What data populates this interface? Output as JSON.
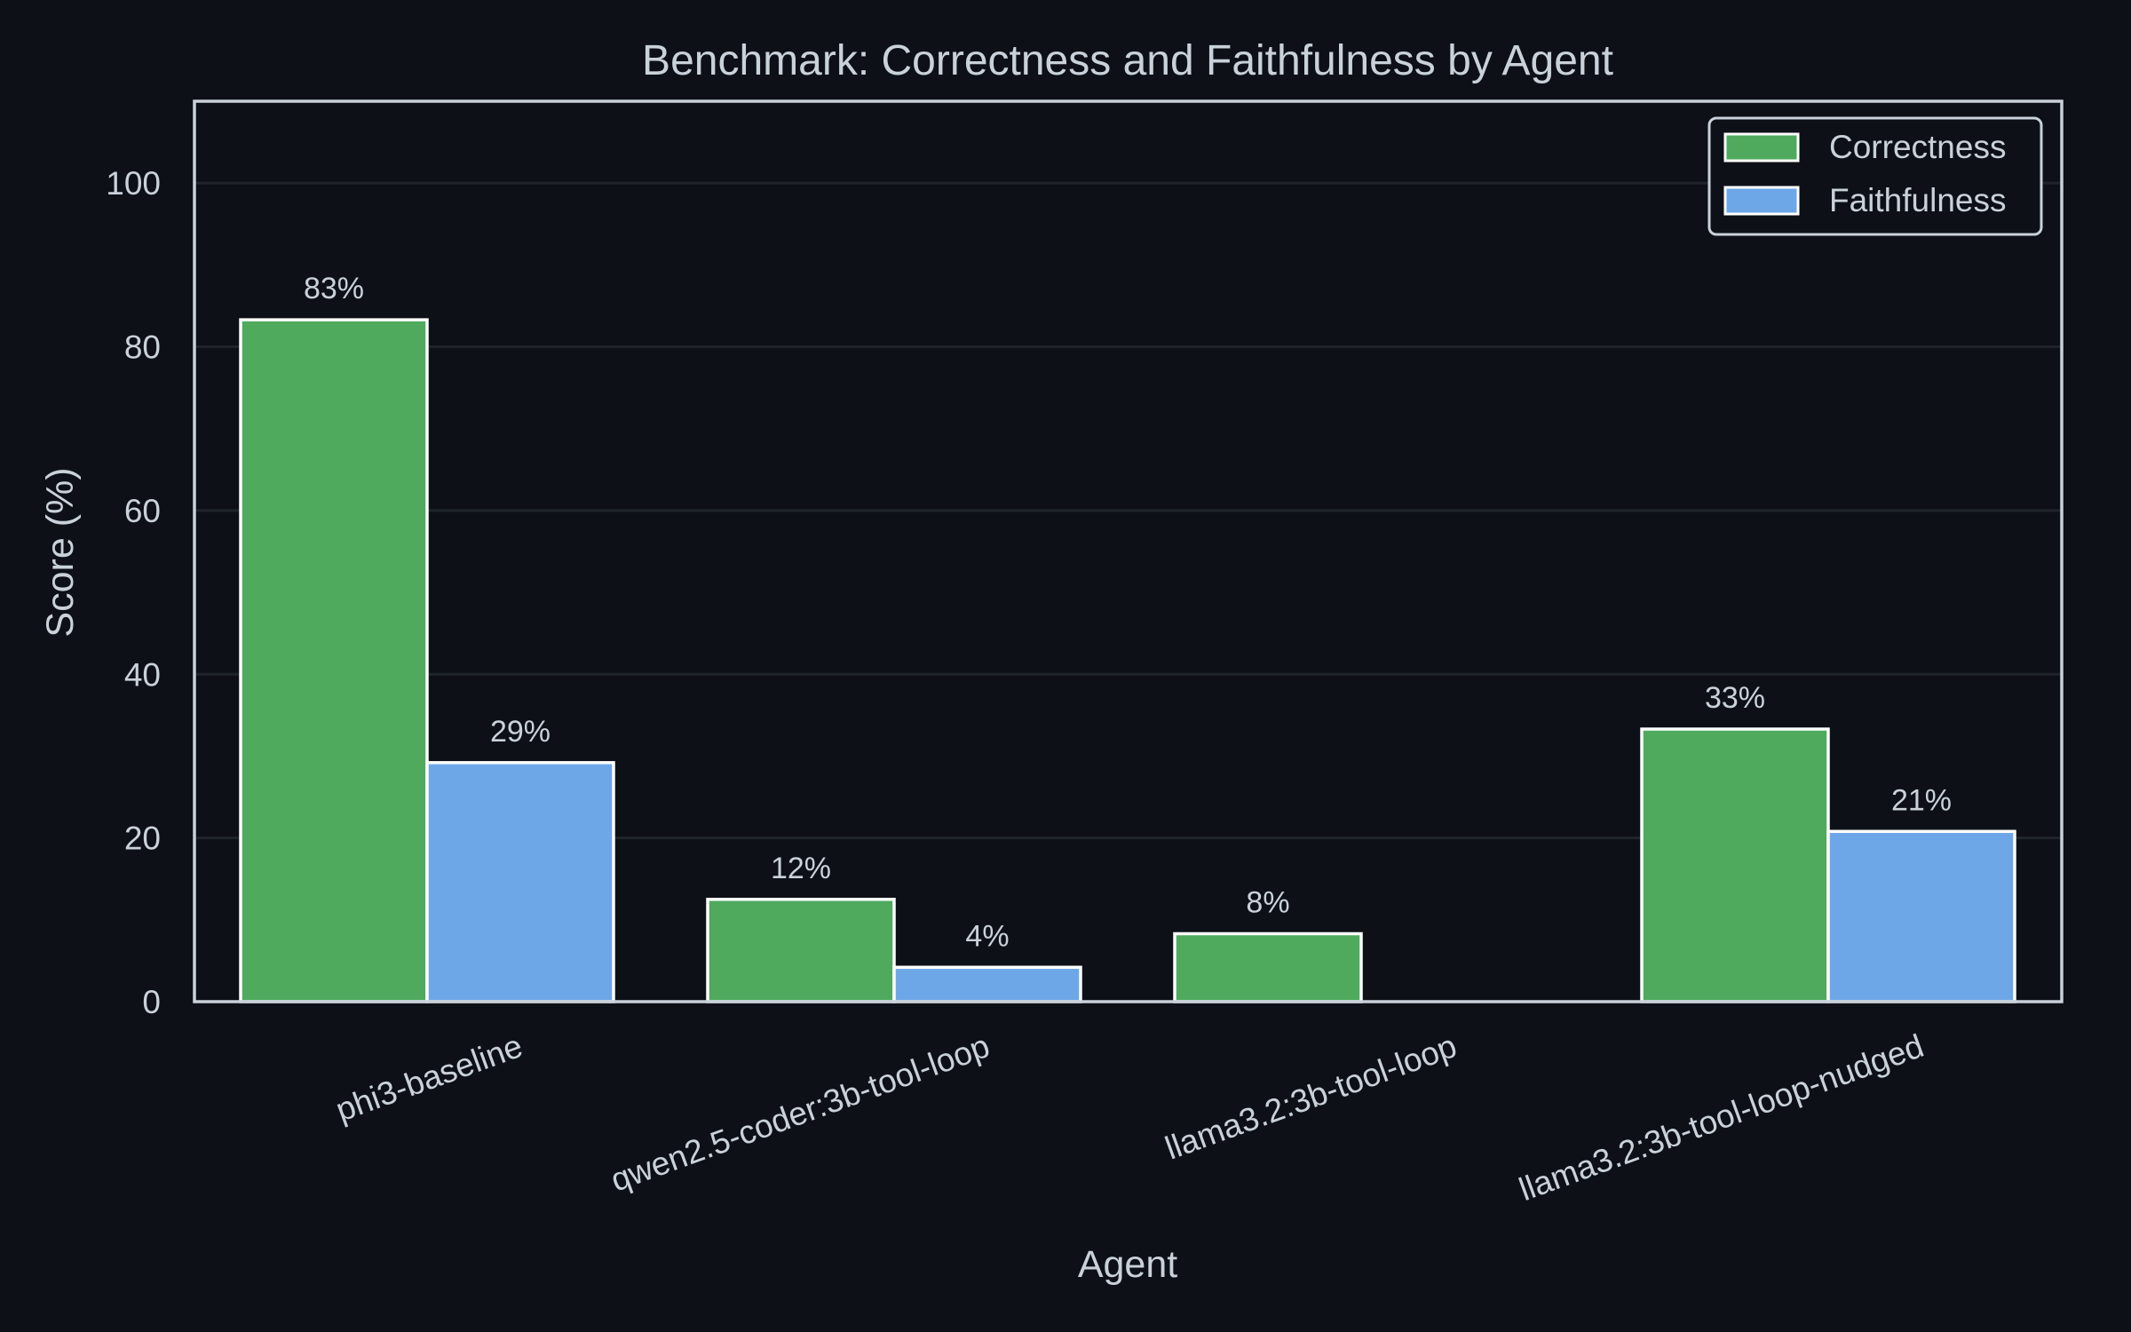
{
  "chart_data": {
    "type": "bar",
    "title": "Benchmark: Correctness and Faithfulness by Agent",
    "xlabel": "Agent",
    "ylabel": "Score (%)",
    "ylim": [
      0,
      110
    ],
    "yticks": [
      0,
      20,
      40,
      60,
      80,
      100
    ],
    "grid": true,
    "legend_position": "top-right",
    "categories": [
      "phi3-baseline",
      "qwen2.5-coder:3b-tool-loop",
      "llama3.2:3b-tool-loop",
      "llama3.2:3b-tool-loop-nudged"
    ],
    "series": [
      {
        "name": "Correctness",
        "color": "#4faa5d",
        "values": [
          83.3,
          12.5,
          8.3,
          33.3
        ],
        "labels": [
          "83%",
          "12%",
          "8%",
          "33%"
        ]
      },
      {
        "name": "Faithfulness",
        "color": "#6ea7e8",
        "values": [
          29.2,
          4.2,
          0,
          20.8
        ],
        "labels": [
          "29%",
          "4%",
          "",
          "21%"
        ]
      }
    ]
  }
}
